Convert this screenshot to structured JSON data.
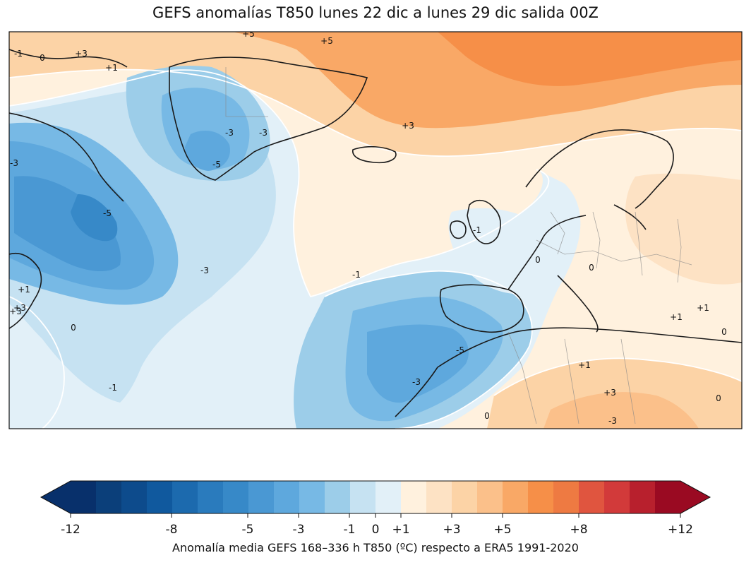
{
  "title": "GEFS anomalías T850 lunes 22 dic a lunes 29 dic salida 00Z",
  "map": {
    "contour_labels": [
      "+5",
      "+3",
      "+5",
      "+1",
      "0",
      "-1",
      "+3",
      "-3",
      "-3",
      "-5",
      "+3",
      "-3",
      "-5",
      "-3",
      "-1",
      "+1",
      "+3",
      "0",
      "-1",
      "0",
      "0",
      "-5",
      "-3",
      "0",
      "+1",
      "+1",
      "+3",
      "-3",
      "+1",
      "0",
      "0",
      "-1"
    ]
  },
  "colorbar": {
    "colors": [
      "#08306b",
      "#0b3f7a",
      "#0d4b8c",
      "#10599e",
      "#1c6aae",
      "#2a7bbd",
      "#3789c8",
      "#4a98d3",
      "#5ea8dd",
      "#77b9e5",
      "#9ccde9",
      "#c6e2f2",
      "#e2f0f8",
      "#fff1de",
      "#fde2c4",
      "#fcd3a6",
      "#fbc08a",
      "#f9a866",
      "#f68f48",
      "#ee7a42",
      "#e0553f",
      "#d23a3a",
      "#b8202d",
      "#9a0a22"
    ],
    "ticks": [
      "-12",
      "-8",
      "-5",
      "-3",
      "-1",
      "0",
      "+1",
      "+3",
      "+5",
      "+8",
      "+12"
    ],
    "caption": "Anomalía media GEFS 168–336 h T850 (ºC) respecto a ERA5 1991-2020"
  }
}
